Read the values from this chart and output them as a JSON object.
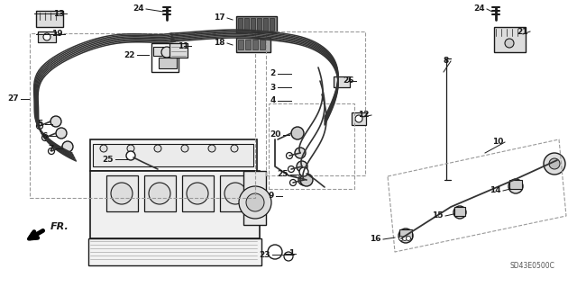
{
  "fig_width": 6.4,
  "fig_height": 3.19,
  "dpi": 100,
  "bg_color": "#ffffff",
  "image_b64": ""
}
